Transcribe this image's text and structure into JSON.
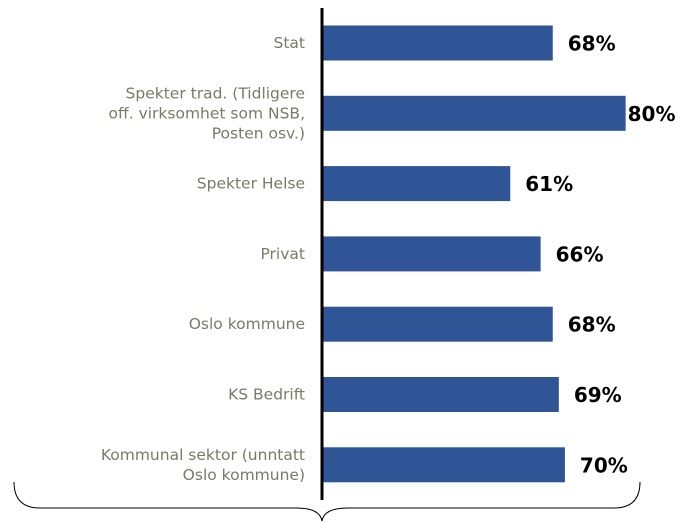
{
  "chart_data": {
    "type": "bar",
    "orientation": "horizontal",
    "categories": [
      "Stat",
      "Spekter trad. (Tidligere\noff. virksomhet som NSB,\nPosten osv.)",
      "Spekter Helse",
      "Privat",
      "Oslo kommune",
      "KS Bedrift",
      "Kommunal sektor (unntatt\nOslo kommune)"
    ],
    "values": [
      68,
      80,
      61,
      66,
      68,
      69,
      70
    ],
    "value_labels": [
      "68%",
      "80%",
      "61%",
      "66%",
      "68%",
      "69%",
      "70%"
    ],
    "color": "#2f5597",
    "xlim": [
      30,
      85
    ]
  }
}
